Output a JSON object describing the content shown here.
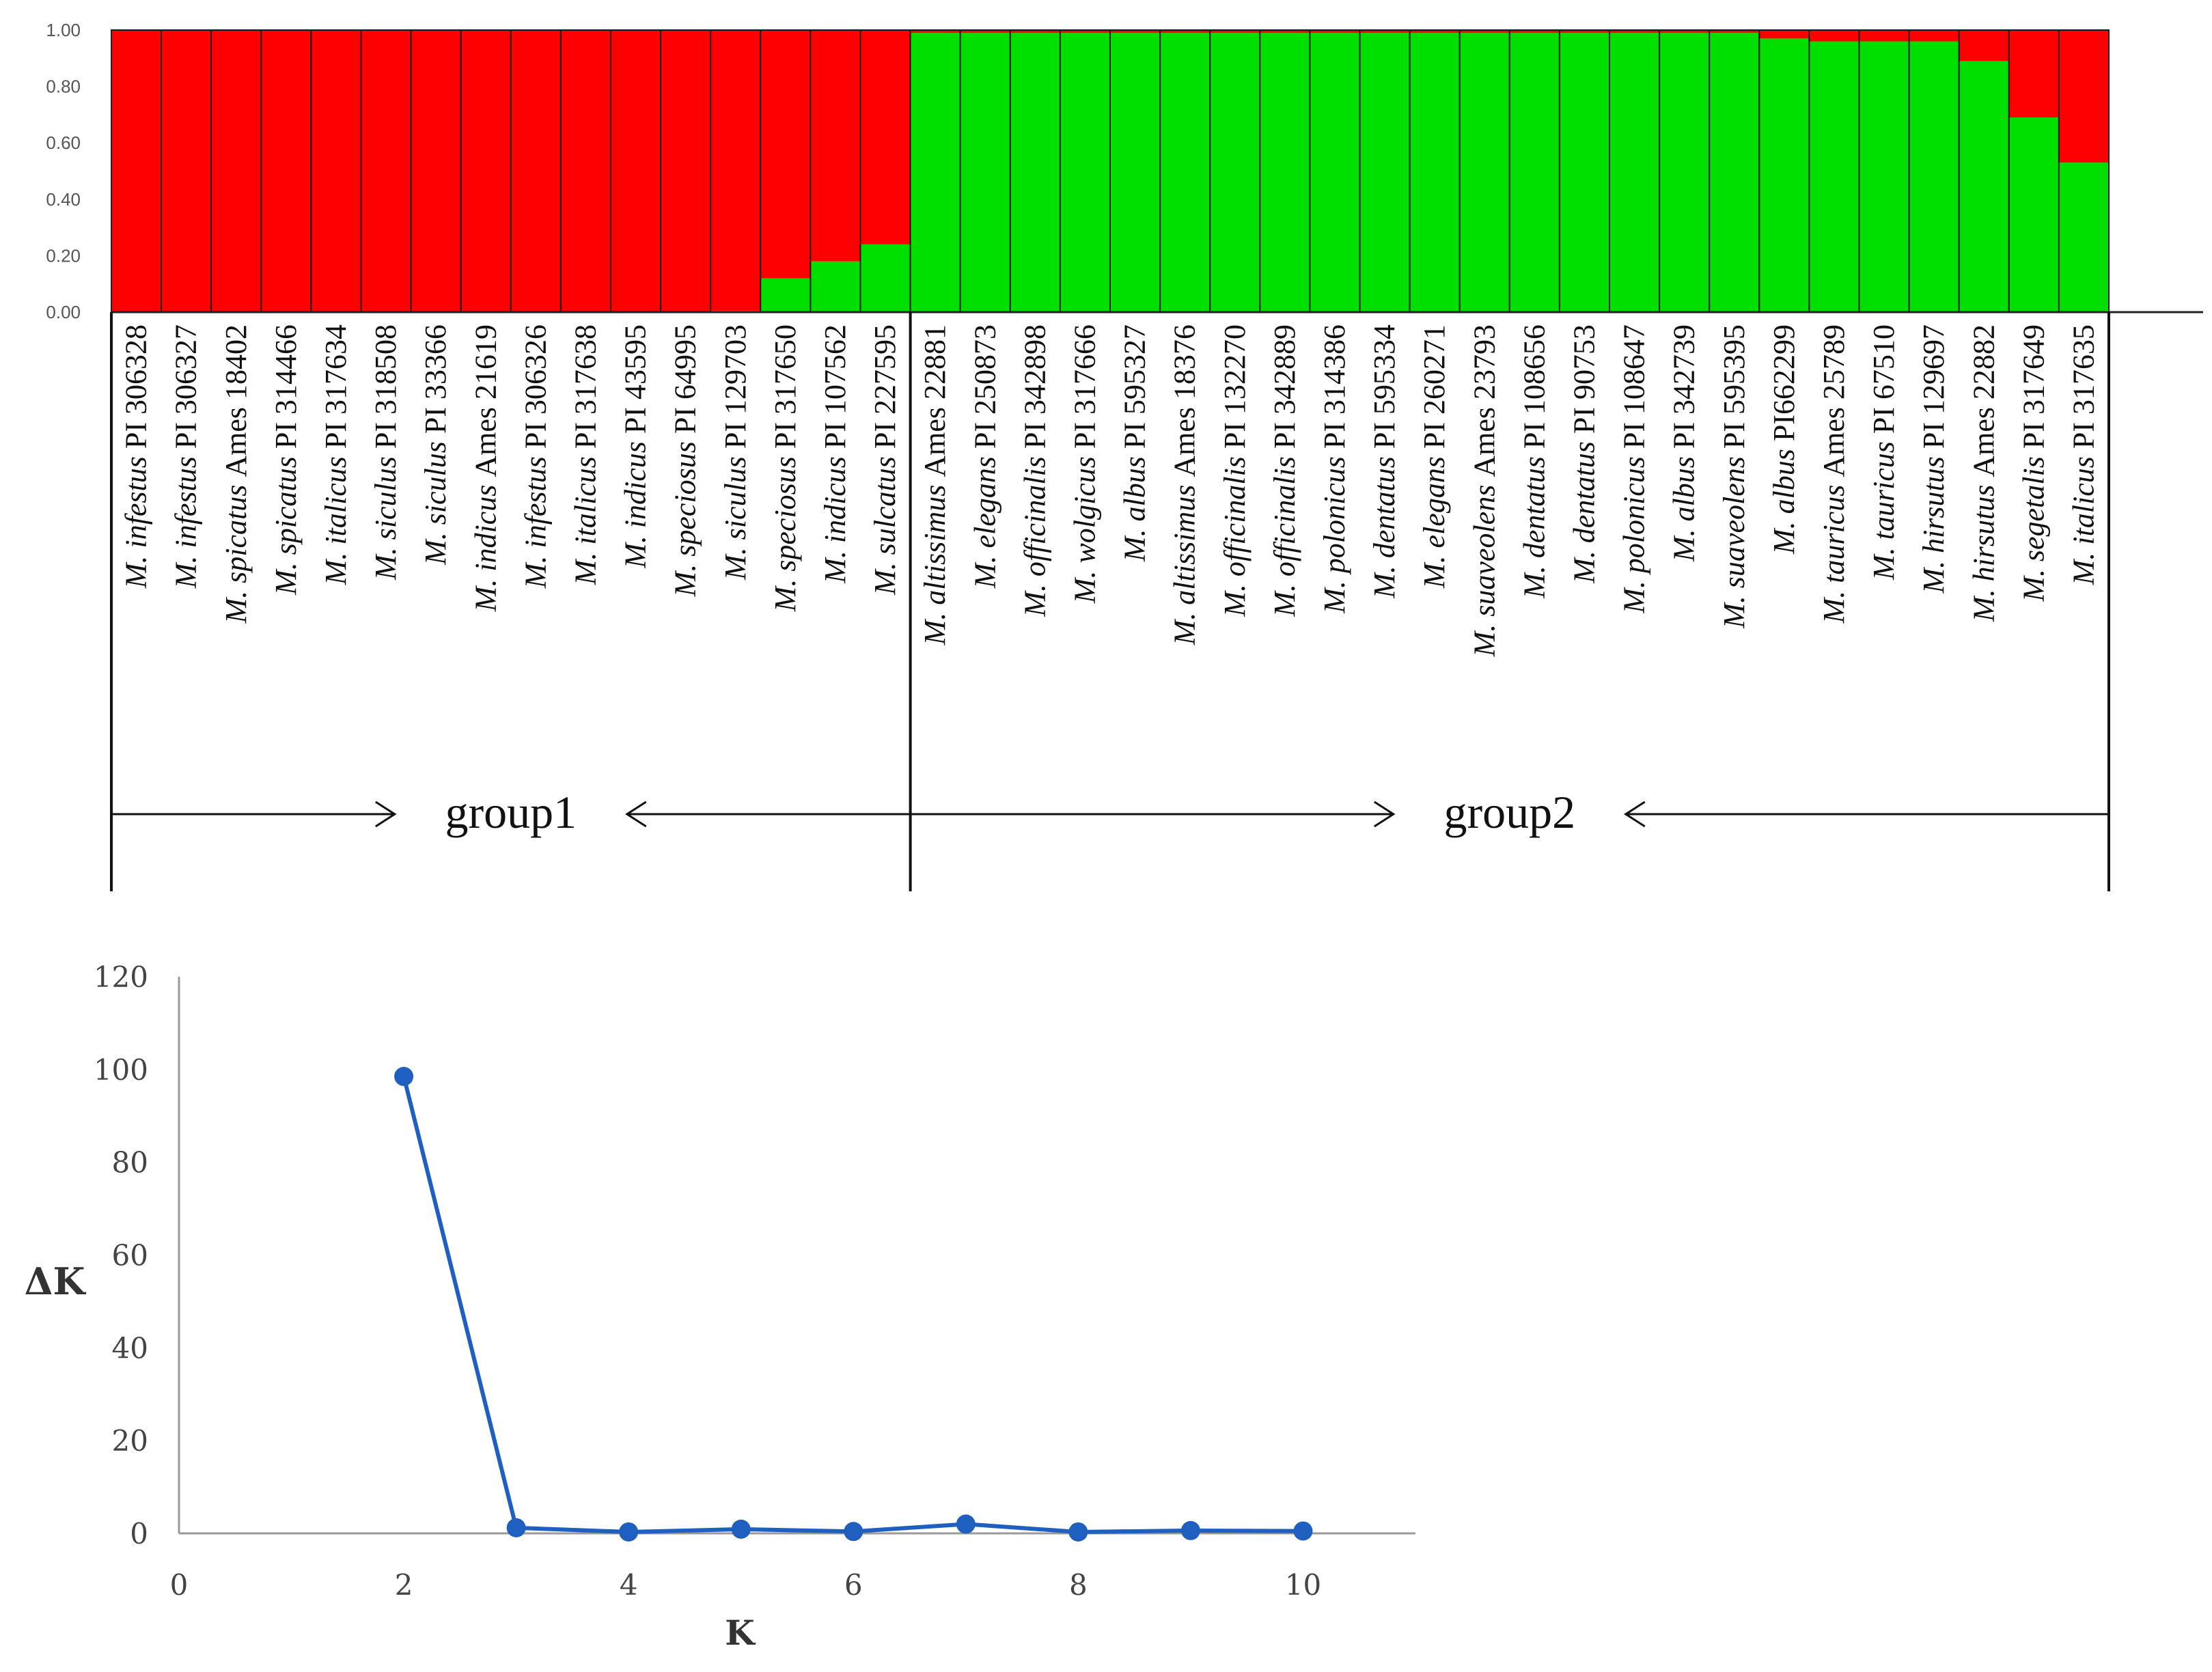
{
  "chart_data": [
    {
      "type": "bar",
      "stacked": true,
      "ylim": [
        0,
        1
      ],
      "yticks": [
        "0.00",
        "0.20",
        "0.40",
        "0.60",
        "0.80",
        "1.00"
      ],
      "colors": {
        "cluster1": "#ff0000",
        "cluster2": "#00e000"
      },
      "categories": [
        {
          "species": "M. infestus",
          "acc": "PI 306328"
        },
        {
          "species": "M. infestus",
          "acc": "PI 306327"
        },
        {
          "species": "M. spicatus",
          "acc": "Ames 18402"
        },
        {
          "species": "M. spicatus",
          "acc": "PI  314466"
        },
        {
          "species": "M. italicus",
          "acc": "PI 317634"
        },
        {
          "species": "M. siculus",
          "acc": "PI 318508"
        },
        {
          "species": "M. siculus",
          "acc": " PI 33366"
        },
        {
          "species": "M. indicus",
          "acc": "Ames 21619"
        },
        {
          "species": "M. infestus",
          "acc": "PI 306326"
        },
        {
          "species": "M. italicus",
          "acc": "PI 317638"
        },
        {
          "species": "M. indicus",
          "acc": "PI 43595"
        },
        {
          "species": "M. speciosus",
          "acc": "PI 64995"
        },
        {
          "species": "M. siculus",
          "acc": "PI 129703"
        },
        {
          "species": "M. speciosus",
          "acc": "PI 317650"
        },
        {
          "species": "M. indicus",
          "acc": "PI 107562"
        },
        {
          "species": "M. sulcatus",
          "acc": "PI 227595"
        },
        {
          "species": "M. altissimus",
          "acc": "Ames  22881"
        },
        {
          "species": "M. elegans",
          "acc": "PI 250873"
        },
        {
          "species": "M. officinalis",
          "acc": "PI 342898"
        },
        {
          "species": "M. wolgicus",
          "acc": "PI 317666"
        },
        {
          "species": "M. albus",
          "acc": "PI 595327"
        },
        {
          "species": "M. altissimus",
          "acc": "Ames 18376"
        },
        {
          "species": "M. officinalis",
          "acc": "PI 132270"
        },
        {
          "species": "M. officinalis",
          "acc": "PI 342889"
        },
        {
          "species": "M. polonicus",
          "acc": "PI 314386"
        },
        {
          "species": "M. dentatus",
          "acc": "PI 595334"
        },
        {
          "species": "M. elegans",
          "acc": "PI 260271"
        },
        {
          "species": "M. suaveolens",
          "acc": "Ames 23793"
        },
        {
          "species": "M. dentatus",
          "acc": "PI 108656"
        },
        {
          "species": "M. dentatus",
          "acc": "PI 90753"
        },
        {
          "species": "M. polonicus",
          "acc": "PI 108647"
        },
        {
          "species": "M. albus",
          "acc": "PI 342739"
        },
        {
          "species": "M. suaveolens",
          "acc": "PI 595395"
        },
        {
          "species": "M. albus",
          "acc": "PI662299"
        },
        {
          "species": "M. tauricus",
          "acc": "Ames 25789"
        },
        {
          "species": "M. tauricus",
          "acc": "PI 67510"
        },
        {
          "species": "M. hirsutus",
          "acc": "PI 129697"
        },
        {
          "species": "M. hirsutus",
          "acc": "Ames 22882"
        },
        {
          "species": "M. segetalis",
          "acc": "PI 317649"
        },
        {
          "species": "M. italicus",
          "acc": "PI 317635"
        }
      ],
      "series": [
        {
          "color": "#00e000",
          "values": [
            0,
            0,
            0,
            0,
            0,
            0,
            0,
            0,
            0,
            0,
            0,
            0,
            0.005,
            0.12,
            0.18,
            0.24,
            0.99,
            0.99,
            0.99,
            0.99,
            0.99,
            0.99,
            0.99,
            0.99,
            0.99,
            0.99,
            0.99,
            0.99,
            0.99,
            0.99,
            0.99,
            0.99,
            0.99,
            0.97,
            0.96,
            0.96,
            0.96,
            0.89,
            0.69,
            0.53
          ]
        },
        {
          "color": "#ff0000",
          "values": [
            1,
            1,
            1,
            1,
            1,
            1,
            1,
            1,
            1,
            1,
            1,
            1,
            0.995,
            0.88,
            0.82,
            0.76,
            0.01,
            0.01,
            0.01,
            0.01,
            0.01,
            0.01,
            0.01,
            0.01,
            0.01,
            0.01,
            0.01,
            0.01,
            0.01,
            0.01,
            0.01,
            0.01,
            0.01,
            0.03,
            0.04,
            0.04,
            0.04,
            0.11,
            0.31,
            0.47
          ]
        }
      ],
      "groups": [
        {
          "label": "group1",
          "from": 1,
          "to": 16
        },
        {
          "label": "group2",
          "from": 17,
          "to": 40
        }
      ]
    },
    {
      "type": "line",
      "color": "#1f5fbf",
      "xlabel": "K",
      "ylabel": "ΔK",
      "xlim": [
        0,
        11
      ],
      "ylim": [
        0,
        120
      ],
      "xticks": [
        0,
        2,
        4,
        6,
        8,
        10
      ],
      "yticks": [
        0,
        20,
        40,
        60,
        80,
        100,
        120
      ],
      "x": [
        2,
        3,
        4,
        5,
        6,
        7,
        8,
        9,
        10
      ],
      "y": [
        98.5,
        1.2,
        0.3,
        0.9,
        0.4,
        2.0,
        0.3,
        0.6,
        0.5
      ]
    }
  ]
}
